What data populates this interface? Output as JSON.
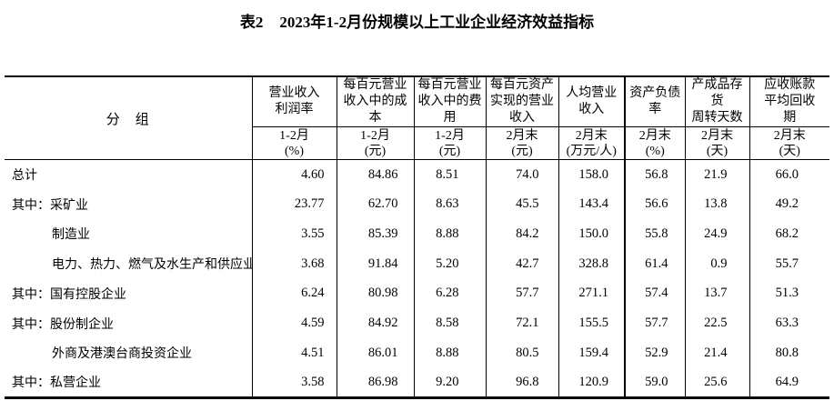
{
  "title": {
    "prefix": "表2",
    "text": "2023年1-2月份规模以上工业企业经济效益指标"
  },
  "table": {
    "group_header": "分　组",
    "columns": [
      {
        "title": "营业收入\n利润率",
        "period": "1-2月",
        "unit": "(%)"
      },
      {
        "title": "每百元营业\n收入中的成\n本",
        "period": "1-2月",
        "unit": "(元)"
      },
      {
        "title": "每百元营业\n收入中的费\n用",
        "period": "1-2月",
        "unit": "(元)"
      },
      {
        "title": "每百元资产\n实现的营业\n收入",
        "period": "2月末",
        "unit": "(元)"
      },
      {
        "title": "人均营业\n收入",
        "period": "2月末",
        "unit": "(万元/人)"
      },
      {
        "title": "资产负债\n率",
        "period": "2月末",
        "unit": "(%)"
      },
      {
        "title": "产成品存\n货\n周转天数",
        "period": "2月末",
        "unit": "(天)"
      },
      {
        "title": "应收账款\n平均回收\n期",
        "period": "2月末",
        "unit": "(天)"
      }
    ],
    "rows": [
      {
        "label": "总计",
        "indent": false,
        "values": [
          "4.60",
          "84.86",
          "8.51",
          "74.0",
          "158.0",
          "56.8",
          "21.9",
          "66.0"
        ]
      },
      {
        "label": "其中：采矿业",
        "indent": false,
        "values": [
          "23.77",
          "62.70",
          "8.63",
          "45.5",
          "143.4",
          "56.6",
          "13.8",
          "49.2"
        ]
      },
      {
        "label": "制造业",
        "indent": true,
        "values": [
          "3.55",
          "85.39",
          "8.88",
          "84.2",
          "150.0",
          "55.8",
          "24.9",
          "68.2"
        ]
      },
      {
        "label": "电力、热力、燃气及水生产和供应业",
        "indent": true,
        "values": [
          "3.68",
          "91.84",
          "5.20",
          "42.7",
          "328.8",
          "61.4",
          "0.9",
          "55.7"
        ]
      },
      {
        "label": "其中：国有控股企业",
        "indent": false,
        "values": [
          "6.24",
          "80.98",
          "6.28",
          "57.7",
          "271.1",
          "57.4",
          "13.7",
          "51.3"
        ]
      },
      {
        "label": "其中：股份制企业",
        "indent": false,
        "values": [
          "4.59",
          "84.92",
          "8.58",
          "72.1",
          "155.5",
          "57.7",
          "22.5",
          "63.3"
        ]
      },
      {
        "label": "外商及港澳台商投资企业",
        "indent": true,
        "values": [
          "4.51",
          "86.01",
          "8.88",
          "80.5",
          "159.4",
          "52.9",
          "21.4",
          "80.8"
        ]
      },
      {
        "label": "其中：私营企业",
        "indent": false,
        "values": [
          "3.58",
          "86.98",
          "9.20",
          "96.8",
          "120.9",
          "59.0",
          "25.6",
          "64.9"
        ]
      }
    ]
  }
}
